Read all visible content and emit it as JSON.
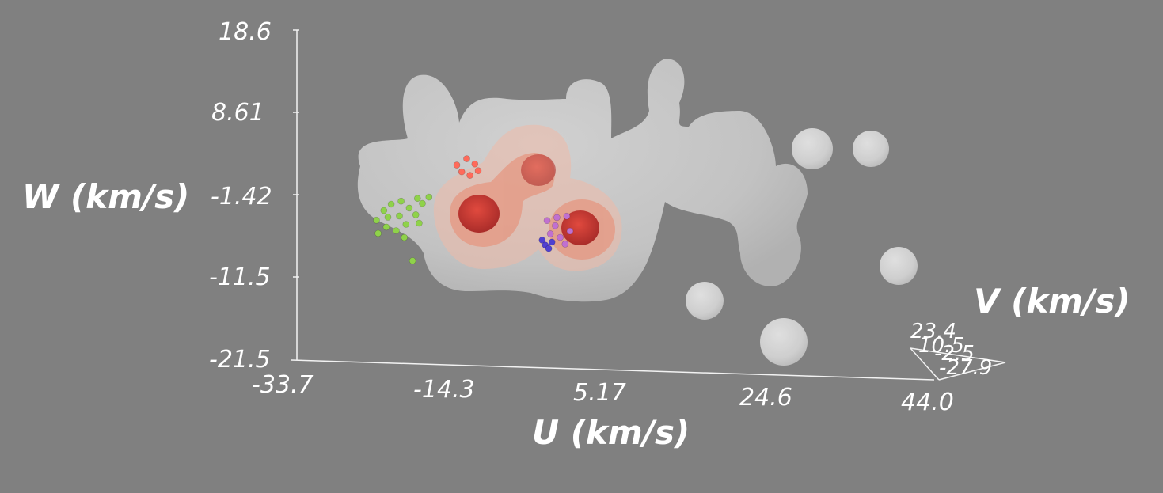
{
  "chart_data": {
    "type": "scatter",
    "projection": "3d",
    "title": "",
    "xlabel": "U (km/s)",
    "ylabel": "W (km/s)",
    "zlabel": "V (km/s)",
    "x_ticks": [
      "-33.7",
      "-14.3",
      "5.17",
      "24.6",
      "44.0"
    ],
    "y_ticks": [
      "18.6",
      "8.61",
      "-1.42",
      "-11.5",
      "-21.5"
    ],
    "z_ticks": [
      "23.4",
      "10.5",
      "-2.5",
      "-27.9"
    ],
    "xlim": [
      -33.7,
      44.0
    ],
    "ylim": [
      -21.5,
      18.6
    ],
    "zlim": [
      -27.9,
      23.4
    ],
    "grid": false,
    "density_contours": {
      "shells": [
        "outer",
        "middle",
        "inner",
        "core"
      ],
      "colors": [
        "#e6e6e6",
        "#f0b8a8",
        "#e6846e",
        "#c02020"
      ]
    },
    "series": [
      {
        "color": "#8fd24a",
        "points": [
          [
            -24.0,
            -4.2,
            0
          ],
          [
            -23.1,
            -3.0,
            0
          ],
          [
            -22.2,
            -2.2,
            0
          ],
          [
            -21.0,
            -1.8,
            0
          ],
          [
            -20.0,
            -2.6,
            0
          ],
          [
            -19.2,
            -3.4,
            0
          ],
          [
            -18.4,
            -2.0,
            0
          ],
          [
            -22.8,
            -5.0,
            0
          ],
          [
            -21.6,
            -5.4,
            0
          ],
          [
            -20.4,
            -4.6,
            0
          ],
          [
            -19.0,
            -1.4,
            0
          ],
          [
            -17.6,
            -1.2,
            0
          ],
          [
            -18.8,
            -4.4,
            0
          ],
          [
            -23.8,
            -5.8,
            0
          ],
          [
            -20.6,
            -6.2,
            0
          ],
          [
            -19.6,
            -9.0,
            0
          ],
          [
            -21.2,
            -3.6,
            0
          ],
          [
            -22.6,
            -3.8,
            0
          ]
        ]
      },
      {
        "color": "#ff6a5a",
        "points": [
          [
            -14.2,
            2.8,
            0
          ],
          [
            -13.0,
            3.6,
            0
          ],
          [
            -12.0,
            3.0,
            0
          ],
          [
            -13.6,
            2.0,
            0
          ],
          [
            -12.6,
            1.6,
            0
          ],
          [
            -11.6,
            2.2,
            0
          ]
        ]
      },
      {
        "color": "#c070d0",
        "points": [
          [
            -3.2,
            -3.6,
            0
          ],
          [
            -2.0,
            -3.2,
            0
          ],
          [
            -0.8,
            -3.0,
            0
          ],
          [
            -2.8,
            -5.2,
            0
          ],
          [
            -1.6,
            -5.6,
            0
          ],
          [
            -0.4,
            -4.8,
            0
          ],
          [
            -2.2,
            -4.2,
            0
          ],
          [
            -1.0,
            -6.4,
            0
          ]
        ]
      },
      {
        "color": "#5040d0",
        "points": [
          [
            -3.8,
            -6.0,
            0
          ],
          [
            -3.4,
            -6.6,
            0
          ],
          [
            -2.6,
            -6.2,
            0
          ],
          [
            -3.0,
            -7.0,
            0
          ]
        ]
      }
    ]
  }
}
